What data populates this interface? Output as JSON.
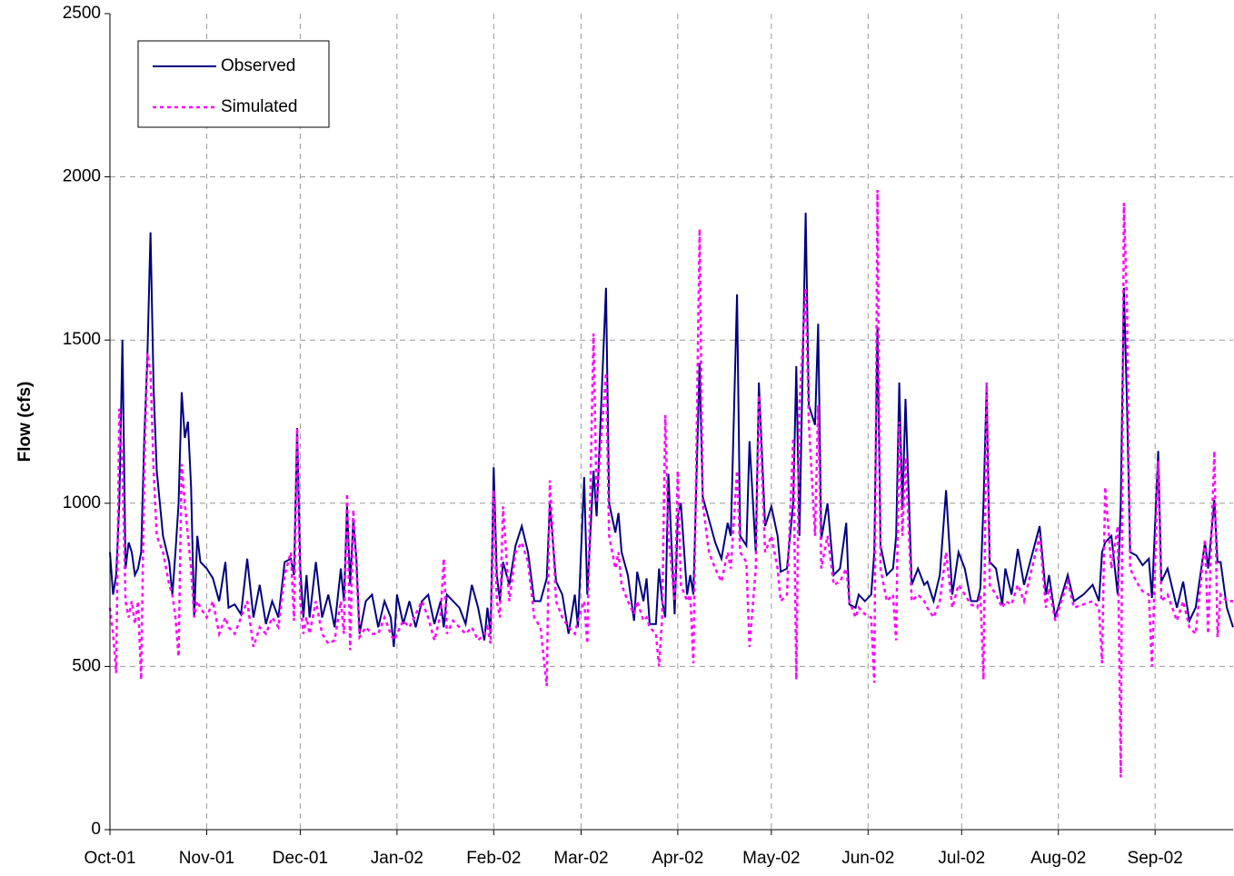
{
  "chart_data": {
    "type": "line",
    "ylabel": "Flow (cfs)",
    "xlim": [
      0,
      360
    ],
    "ylim": [
      0,
      2500
    ],
    "yticks": [
      0,
      500,
      1000,
      1500,
      2000,
      2500
    ],
    "xticks": [
      {
        "value": 0,
        "label": "Oct-01"
      },
      {
        "value": 31,
        "label": "Nov-01"
      },
      {
        "value": 61,
        "label": "Dec-01"
      },
      {
        "value": 92,
        "label": "Jan-02"
      },
      {
        "value": 123,
        "label": "Feb-02"
      },
      {
        "value": 151,
        "label": "Mar-02"
      },
      {
        "value": 182,
        "label": "Apr-02"
      },
      {
        "value": 212,
        "label": "May-02"
      },
      {
        "value": 243,
        "label": "Jun-02"
      },
      {
        "value": 273,
        "label": "Jul-02"
      },
      {
        "value": 304,
        "label": "Aug-02"
      },
      {
        "value": 335,
        "label": "Sep-02"
      }
    ],
    "grid": true,
    "legend": "upper left",
    "x": [
      0,
      1,
      2,
      3,
      4,
      5,
      6,
      7,
      8,
      9,
      10,
      11,
      12,
      13,
      14,
      15,
      17,
      19,
      20,
      21,
      22,
      23,
      24,
      25,
      26,
      27,
      28,
      29,
      31,
      33,
      35,
      37,
      38,
      40,
      42,
      44,
      46,
      48,
      50,
      52,
      54,
      56,
      58,
      59,
      60,
      61,
      62,
      63,
      64,
      66,
      68,
      70,
      72,
      74,
      75,
      76,
      77,
      78,
      79,
      80,
      82,
      84,
      86,
      88,
      90,
      91,
      92,
      94,
      96,
      98,
      100,
      102,
      104,
      106,
      107,
      108,
      110,
      112,
      114,
      116,
      118,
      120,
      121,
      122,
      123,
      124,
      125,
      126,
      128,
      130,
      132,
      134,
      136,
      138,
      140,
      141,
      143,
      145,
      147,
      149,
      150,
      152,
      153,
      155,
      156,
      159,
      160,
      162,
      163,
      164,
      166,
      168,
      169,
      171,
      172,
      173,
      175,
      176,
      177,
      178,
      179,
      181,
      182,
      183,
      185,
      186,
      187,
      189,
      190,
      192,
      194,
      196,
      198,
      199,
      201,
      202,
      204,
      205,
      207,
      208,
      210,
      212,
      214,
      215,
      217,
      219,
      220,
      221,
      223,
      224,
      226,
      227,
      228,
      230,
      232,
      234,
      236,
      237,
      239,
      240,
      242,
      244,
      245,
      246,
      247,
      249,
      251,
      252,
      253,
      254,
      255,
      257,
      259,
      261,
      262,
      264,
      266,
      268,
      270,
      272,
      274,
      276,
      278,
      279,
      280,
      281,
      282,
      284,
      286,
      287,
      289,
      291,
      293,
      298,
      300,
      301,
      303,
      307,
      309,
      312,
      315,
      317,
      318,
      319,
      321,
      323,
      324,
      325,
      326,
      327,
      329,
      331,
      333,
      334,
      336,
      337,
      339,
      342,
      344,
      346,
      348,
      351,
      352,
      354,
      355,
      356,
      358,
      360
    ],
    "series": [
      {
        "name": "Observed",
        "color": "#000080",
        "dash": "solid",
        "values": [
          850,
          720,
          780,
          1000,
          1500,
          800,
          880,
          850,
          780,
          800,
          850,
          1200,
          1450,
          1830,
          1350,
          1100,
          900,
          820,
          720,
          850,
          1000,
          1340,
          1200,
          1250,
          1050,
          650,
          900,
          820,
          800,
          770,
          700,
          820,
          680,
          690,
          660,
          830,
          650,
          750,
          630,
          700,
          650,
          820,
          830,
          780,
          1230,
          800,
          650,
          780,
          650,
          820,
          650,
          720,
          620,
          800,
          700,
          990,
          750,
          950,
          830,
          600,
          700,
          720,
          620,
          700,
          650,
          560,
          720,
          630,
          700,
          620,
          700,
          720,
          630,
          700,
          620,
          720,
          700,
          680,
          630,
          750,
          680,
          580,
          680,
          600,
          1110,
          780,
          700,
          820,
          750,
          870,
          930,
          850,
          700,
          700,
          770,
          1000,
          760,
          720,
          600,
          720,
          620,
          1080,
          720,
          1100,
          960,
          1660,
          1000,
          910,
          970,
          850,
          780,
          640,
          790,
          700,
          770,
          630,
          630,
          800,
          700,
          650,
          1090,
          660,
          960,
          1000,
          720,
          780,
          720,
          1430,
          1020,
          950,
          880,
          830,
          940,
          900,
          1640,
          900,
          870,
          1190,
          850,
          1370,
          930,
          990,
          900,
          790,
          800,
          1000,
          1420,
          900,
          1890,
          1300,
          1240,
          1550,
          890,
          1000,
          780,
          800,
          940,
          690,
          680,
          720,
          700,
          720,
          850,
          1540,
          870,
          780,
          800,
          900,
          1370,
          980,
          1320,
          750,
          800,
          750,
          760,
          700,
          780,
          1040,
          720,
          850,
          800,
          700,
          700,
          740,
          1000,
          1360,
          820,
          800,
          690,
          800,
          720,
          860,
          750,
          930,
          720,
          780,
          650,
          780,
          700,
          720,
          750,
          700,
          850,
          880,
          900,
          720,
          1000,
          1660,
          1300,
          850,
          840,
          810,
          830,
          710,
          1160,
          760,
          800,
          680,
          760,
          640,
          680,
          880,
          800,
          1010,
          820,
          820,
          680,
          620
        ]
      },
      {
        "name": "Simulated",
        "color": "#ff00ff",
        "dash": "dashed",
        "values": [
          680,
          600,
          480,
          1290,
          1100,
          700,
          650,
          700,
          630,
          700,
          460,
          1100,
          1460,
          1400,
          1100,
          900,
          850,
          750,
          720,
          650,
          530,
          1120,
          1000,
          900,
          800,
          650,
          700,
          680,
          650,
          700,
          600,
          650,
          620,
          600,
          650,
          700,
          560,
          620,
          600,
          650,
          620,
          780,
          850,
          640,
          1230,
          700,
          600,
          650,
          600,
          700,
          600,
          570,
          580,
          700,
          600,
          1030,
          550,
          980,
          800,
          590,
          620,
          600,
          600,
          650,
          600,
          580,
          600,
          640,
          620,
          660,
          700,
          650,
          580,
          660,
          830,
          600,
          640,
          620,
          600,
          620,
          580,
          600,
          620,
          570,
          1040,
          700,
          650,
          990,
          700,
          850,
          880,
          820,
          650,
          620,
          440,
          1070,
          700,
          650,
          620,
          600,
          640,
          700,
          570,
          1520,
          1000,
          1400,
          900,
          800,
          850,
          750,
          700,
          660,
          700,
          640,
          650,
          620,
          600,
          500,
          650,
          1270,
          900,
          700,
          1100,
          750,
          700,
          720,
          510,
          1840,
          1000,
          850,
          800,
          760,
          850,
          800,
          1100,
          850,
          820,
          560,
          800,
          1330,
          850,
          900,
          800,
          700,
          720,
          1200,
          460,
          1300,
          1660,
          1250,
          900,
          1300,
          800,
          900,
          750,
          760,
          800,
          700,
          650,
          680,
          660,
          650,
          450,
          1960,
          800,
          700,
          720,
          580,
          1250,
          900,
          1140,
          700,
          720,
          700,
          680,
          650,
          700,
          850,
          680,
          750,
          720,
          690,
          680,
          720,
          460,
          1370,
          750,
          720,
          680,
          700,
          690,
          750,
          700,
          900,
          680,
          740,
          640,
          760,
          680,
          690,
          700,
          680,
          510,
          1050,
          800,
          930,
          160,
          1920,
          1600,
          800,
          760,
          730,
          720,
          500,
          1130,
          700,
          720,
          640,
          700,
          620,
          600,
          890,
          600,
          1160,
          590,
          720,
          700,
          700
        ]
      }
    ]
  }
}
